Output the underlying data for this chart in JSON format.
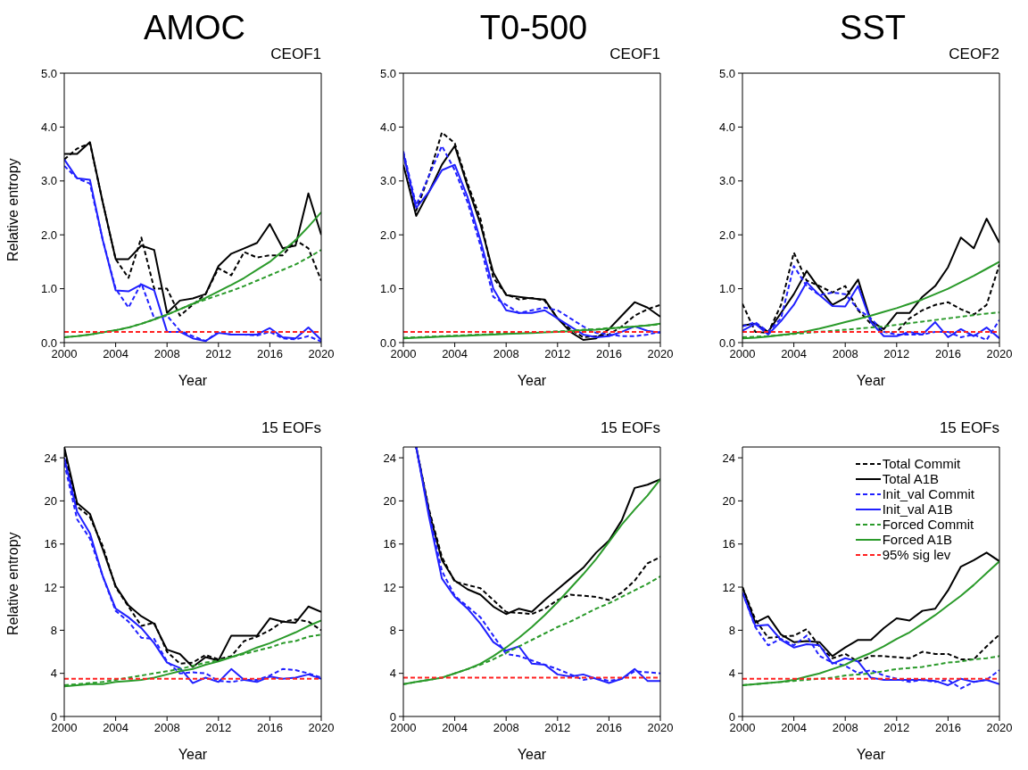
{
  "chart_data": [
    {
      "type": "line",
      "title": "AMOC",
      "subtitle": "CEOF1",
      "xlabel": "Year",
      "ylabel": "Relative entropy",
      "x": [
        2000,
        2001,
        2002,
        2003,
        2004,
        2005,
        2006,
        2007,
        2008,
        2009,
        2010,
        2011,
        2012,
        2013,
        2014,
        2015,
        2016,
        2017,
        2018,
        2019,
        2020
      ],
      "xlim": [
        2000,
        2020
      ],
      "xticks": [
        2000,
        2004,
        2008,
        2012,
        2016,
        2020
      ],
      "ylim": [
        0,
        5
      ],
      "yticks": [
        {
          "value": 0,
          "label": "0.0"
        },
        {
          "value": 1,
          "label": "1.0"
        },
        {
          "value": 2,
          "label": "2.0"
        },
        {
          "value": 3,
          "label": "3.0"
        },
        {
          "value": 4,
          "label": "4.0"
        },
        {
          "value": 5,
          "label": "5.0"
        }
      ],
      "legend": false,
      "series": [
        {
          "color": "#000000",
          "line_style": "dashed",
          "values": [
            3.4,
            3.6,
            3.7,
            2.6,
            1.55,
            1.2,
            1.95,
            1.0,
            1.0,
            0.5,
            0.7,
            0.9,
            1.38,
            1.25,
            1.68,
            1.58,
            1.62,
            1.62,
            1.9,
            1.75,
            1.15
          ]
        },
        {
          "color": "#000000",
          "line_style": "solid",
          "values": [
            3.5,
            3.5,
            3.72,
            2.6,
            1.55,
            1.55,
            1.8,
            1.72,
            0.55,
            0.78,
            0.82,
            0.9,
            1.42,
            1.65,
            1.75,
            1.85,
            2.2,
            1.75,
            1.8,
            2.77,
            2.0
          ]
        },
        {
          "color": "#2020ff",
          "line_style": "dashed",
          "values": [
            3.28,
            3.05,
            2.95,
            1.9,
            1.0,
            0.65,
            1.1,
            0.45,
            0.5,
            0.22,
            0.12,
            0.03,
            0.2,
            0.15,
            0.15,
            0.13,
            0.2,
            0.08,
            0.06,
            0.12,
            0.02
          ]
        },
        {
          "color": "#2020ff",
          "line_style": "solid",
          "values": [
            3.4,
            3.05,
            3.02,
            1.9,
            0.97,
            0.95,
            1.08,
            0.97,
            0.2,
            0.2,
            0.08,
            0.03,
            0.18,
            0.15,
            0.15,
            0.15,
            0.27,
            0.1,
            0.08,
            0.28,
            0.05
          ]
        },
        {
          "color": "#2a9a2a",
          "line_style": "dashed",
          "values": [
            0.1,
            0.12,
            0.15,
            0.19,
            0.23,
            0.28,
            0.35,
            0.43,
            0.52,
            0.62,
            0.72,
            0.8,
            0.88,
            0.96,
            1.05,
            1.15,
            1.25,
            1.35,
            1.45,
            1.58,
            1.72
          ]
        },
        {
          "color": "#2a9a2a",
          "line_style": "solid",
          "values": [
            0.1,
            0.12,
            0.15,
            0.19,
            0.23,
            0.28,
            0.35,
            0.43,
            0.52,
            0.62,
            0.72,
            0.83,
            0.95,
            1.07,
            1.2,
            1.35,
            1.5,
            1.7,
            1.9,
            2.15,
            2.42
          ]
        },
        {
          "color": "#ff2020",
          "line_style": "dashed",
          "values": [
            0.2,
            0.2,
            0.2,
            0.2,
            0.2,
            0.2,
            0.2,
            0.2,
            0.2,
            0.2,
            0.2,
            0.2,
            0.2,
            0.2,
            0.2,
            0.2,
            0.2,
            0.2,
            0.2,
            0.2,
            0.2
          ]
        }
      ]
    },
    {
      "type": "line",
      "title": "T0-500",
      "subtitle": "CEOF1",
      "xlabel": "Year",
      "x": [
        2000,
        2001,
        2002,
        2003,
        2004,
        2005,
        2006,
        2007,
        2008,
        2009,
        2010,
        2011,
        2012,
        2013,
        2014,
        2015,
        2016,
        2017,
        2018,
        2019,
        2020
      ],
      "xlim": [
        2000,
        2020
      ],
      "xticks": [
        2000,
        2004,
        2008,
        2012,
        2016,
        2020
      ],
      "ylim": [
        0,
        5
      ],
      "yticks": [
        {
          "value": 0,
          "label": "0.0"
        },
        {
          "value": 1,
          "label": "1.0"
        },
        {
          "value": 2,
          "label": "2.0"
        },
        {
          "value": 3,
          "label": "3.0"
        },
        {
          "value": 4,
          "label": "4.0"
        },
        {
          "value": 5,
          "label": "5.0"
        }
      ],
      "legend": false,
      "series": [
        {
          "color": "#000000",
          "line_style": "dashed",
          "values": [
            3.5,
            2.45,
            3.1,
            3.9,
            3.7,
            2.95,
            2.3,
            1.2,
            0.9,
            0.8,
            0.83,
            0.78,
            0.45,
            0.25,
            0.1,
            0.12,
            0.15,
            0.3,
            0.5,
            0.62,
            0.7
          ]
        },
        {
          "color": "#000000",
          "line_style": "solid",
          "values": [
            3.3,
            2.35,
            2.8,
            3.3,
            3.65,
            2.9,
            2.2,
            1.3,
            0.88,
            0.85,
            0.82,
            0.8,
            0.45,
            0.2,
            0.05,
            0.08,
            0.25,
            0.5,
            0.75,
            0.65,
            0.48
          ]
        },
        {
          "color": "#2020ff",
          "line_style": "dashed",
          "values": [
            3.55,
            2.55,
            3.1,
            3.65,
            3.2,
            2.6,
            1.8,
            0.85,
            0.7,
            0.55,
            0.6,
            0.65,
            0.6,
            0.45,
            0.3,
            0.18,
            0.15,
            0.12,
            0.12,
            0.15,
            0.2
          ]
        },
        {
          "color": "#2020ff",
          "line_style": "solid",
          "values": [
            3.5,
            2.5,
            2.8,
            3.2,
            3.3,
            2.7,
            1.9,
            1.0,
            0.6,
            0.55,
            0.55,
            0.6,
            0.45,
            0.3,
            0.15,
            0.1,
            0.12,
            0.2,
            0.3,
            0.22,
            0.18
          ]
        },
        {
          "color": "#2a9a2a",
          "line_style": "dashed",
          "values": [
            0.09,
            0.1,
            0.11,
            0.12,
            0.13,
            0.14,
            0.15,
            0.16,
            0.17,
            0.18,
            0.19,
            0.2,
            0.21,
            0.22,
            0.24,
            0.25,
            0.27,
            0.28,
            0.3,
            0.32,
            0.34
          ]
        },
        {
          "color": "#2a9a2a",
          "line_style": "solid",
          "values": [
            0.08,
            0.09,
            0.1,
            0.11,
            0.12,
            0.13,
            0.14,
            0.15,
            0.16,
            0.17,
            0.18,
            0.19,
            0.2,
            0.21,
            0.23,
            0.24,
            0.26,
            0.28,
            0.3,
            0.32,
            0.35
          ]
        },
        {
          "color": "#ff2020",
          "line_style": "dashed",
          "values": [
            0.2,
            0.2,
            0.2,
            0.2,
            0.2,
            0.2,
            0.2,
            0.2,
            0.2,
            0.2,
            0.2,
            0.2,
            0.2,
            0.2,
            0.2,
            0.2,
            0.2,
            0.2,
            0.2,
            0.2,
            0.2
          ]
        }
      ]
    },
    {
      "type": "line",
      "title": "SST",
      "subtitle": "CEOF2",
      "xlabel": "Year",
      "x": [
        2000,
        2001,
        2002,
        2003,
        2004,
        2005,
        2006,
        2007,
        2008,
        2009,
        2010,
        2011,
        2012,
        2013,
        2014,
        2015,
        2016,
        2017,
        2018,
        2019,
        2020
      ],
      "xlim": [
        2000,
        2020
      ],
      "xticks": [
        2000,
        2004,
        2008,
        2012,
        2016,
        2020
      ],
      "ylim": [
        0,
        5
      ],
      "yticks": [
        {
          "value": 0,
          "label": "0.0"
        },
        {
          "value": 1,
          "label": "1.0"
        },
        {
          "value": 2,
          "label": "2.0"
        },
        {
          "value": 3,
          "label": "3.0"
        },
        {
          "value": 4,
          "label": "4.0"
        },
        {
          "value": 5,
          "label": "5.0"
        }
      ],
      "legend": false,
      "series": [
        {
          "color": "#000000",
          "line_style": "dashed",
          "values": [
            0.72,
            0.2,
            0.18,
            0.7,
            1.67,
            1.15,
            1.05,
            0.93,
            1.05,
            0.6,
            0.35,
            0.2,
            0.2,
            0.45,
            0.6,
            0.7,
            0.75,
            0.62,
            0.52,
            0.7,
            1.45
          ]
        },
        {
          "color": "#000000",
          "line_style": "solid",
          "values": [
            0.32,
            0.35,
            0.2,
            0.55,
            0.9,
            1.33,
            1.0,
            0.7,
            0.83,
            1.17,
            0.4,
            0.25,
            0.55,
            0.55,
            0.85,
            1.05,
            1.4,
            1.95,
            1.75,
            2.3,
            1.85
          ]
        },
        {
          "color": "#2020ff",
          "line_style": "dashed",
          "values": [
            0.3,
            0.38,
            0.2,
            0.45,
            1.42,
            1.05,
            0.88,
            0.93,
            0.9,
            0.62,
            0.45,
            0.2,
            0.15,
            0.15,
            0.15,
            0.2,
            0.2,
            0.1,
            0.15,
            0.05,
            0.42
          ]
        },
        {
          "color": "#2020ff",
          "line_style": "solid",
          "values": [
            0.22,
            0.35,
            0.15,
            0.4,
            0.7,
            1.12,
            0.88,
            0.68,
            0.67,
            1.05,
            0.38,
            0.12,
            0.12,
            0.2,
            0.15,
            0.38,
            0.1,
            0.25,
            0.12,
            0.28,
            0.08
          ]
        },
        {
          "color": "#2a9a2a",
          "line_style": "dashed",
          "values": [
            0.1,
            0.11,
            0.12,
            0.14,
            0.16,
            0.18,
            0.2,
            0.22,
            0.24,
            0.26,
            0.28,
            0.3,
            0.33,
            0.36,
            0.39,
            0.42,
            0.45,
            0.48,
            0.51,
            0.54,
            0.56
          ]
        },
        {
          "color": "#2a9a2a",
          "line_style": "solid",
          "values": [
            0.08,
            0.09,
            0.11,
            0.14,
            0.17,
            0.21,
            0.26,
            0.32,
            0.38,
            0.44,
            0.5,
            0.57,
            0.64,
            0.72,
            0.8,
            0.9,
            1.0,
            1.12,
            1.24,
            1.37,
            1.5
          ]
        },
        {
          "color": "#ff2020",
          "line_style": "dashed",
          "values": [
            0.2,
            0.2,
            0.2,
            0.2,
            0.2,
            0.2,
            0.2,
            0.2,
            0.2,
            0.2,
            0.2,
            0.2,
            0.2,
            0.2,
            0.2,
            0.2,
            0.2,
            0.2,
            0.2,
            0.2,
            0.2
          ]
        }
      ]
    },
    {
      "type": "line",
      "subtitle": "15 EOFs",
      "xlabel": "Year",
      "ylabel": "Relative entropy",
      "x": [
        2000,
        2001,
        2002,
        2003,
        2004,
        2005,
        2006,
        2007,
        2008,
        2009,
        2010,
        2011,
        2012,
        2013,
        2014,
        2015,
        2016,
        2017,
        2018,
        2019,
        2020
      ],
      "xlim": [
        2000,
        2020
      ],
      "xticks": [
        2000,
        2004,
        2008,
        2012,
        2016,
        2020
      ],
      "ylim": [
        0,
        25
      ],
      "yticks": [
        0,
        4,
        8,
        12,
        16,
        20,
        24
      ],
      "legend": false,
      "series": [
        {
          "color": "#000000",
          "line_style": "dashed",
          "values": [
            24.5,
            19.5,
            18.5,
            15.8,
            12.0,
            10.2,
            8.4,
            8.7,
            6.0,
            4.9,
            5.0,
            5.7,
            5.3,
            5.6,
            7.0,
            7.4,
            8.0,
            8.8,
            9.0,
            8.8,
            8.0
          ]
        },
        {
          "color": "#000000",
          "line_style": "solid",
          "values": [
            25,
            19.8,
            18.8,
            15.5,
            12.1,
            10.3,
            9.3,
            8.6,
            6.2,
            5.8,
            4.6,
            5.5,
            5.2,
            7.5,
            7.5,
            7.5,
            9.1,
            8.8,
            8.7,
            10.2,
            9.7
          ]
        },
        {
          "color": "#2020ff",
          "line_style": "dashed",
          "values": [
            23.5,
            18.3,
            16.5,
            13.0,
            9.8,
            8.8,
            7.3,
            7.2,
            5.1,
            4.0,
            4.1,
            4.0,
            3.3,
            3.2,
            3.4,
            3.4,
            3.8,
            4.4,
            4.3,
            4.0,
            3.6
          ]
        },
        {
          "color": "#2020ff",
          "line_style": "solid",
          "values": [
            24,
            19.0,
            17.0,
            13.0,
            10.0,
            9.2,
            8.2,
            6.8,
            5.0,
            4.5,
            3.1,
            3.6,
            3.2,
            4.4,
            3.4,
            3.2,
            3.7,
            3.5,
            3.6,
            3.9,
            3.5
          ]
        },
        {
          "color": "#2a9a2a",
          "line_style": "dashed",
          "values": [
            2.9,
            3.0,
            3.1,
            3.2,
            3.4,
            3.6,
            3.8,
            4.0,
            4.2,
            4.4,
            4.7,
            5.0,
            5.2,
            5.5,
            5.8,
            6.1,
            6.4,
            6.8,
            7.0,
            7.4,
            7.6
          ]
        },
        {
          "color": "#2a9a2a",
          "line_style": "solid",
          "values": [
            2.8,
            2.9,
            3.0,
            3.0,
            3.2,
            3.3,
            3.4,
            3.6,
            3.9,
            4.2,
            4.4,
            4.8,
            5.1,
            5.5,
            5.9,
            6.4,
            6.8,
            7.3,
            7.8,
            8.4,
            8.9
          ]
        },
        {
          "color": "#ff2020",
          "line_style": "dashed",
          "values": [
            3.5,
            3.5,
            3.5,
            3.5,
            3.5,
            3.5,
            3.5,
            3.5,
            3.5,
            3.5,
            3.5,
            3.5,
            3.5,
            3.5,
            3.5,
            3.5,
            3.5,
            3.5,
            3.5,
            3.5,
            3.5
          ]
        }
      ]
    },
    {
      "type": "line",
      "subtitle": "15 EOFs",
      "xlabel": "Year",
      "x": [
        2000,
        2001,
        2002,
        2003,
        2004,
        2005,
        2006,
        2007,
        2008,
        2009,
        2010,
        2011,
        2012,
        2013,
        2014,
        2015,
        2016,
        2017,
        2018,
        2019,
        2020
      ],
      "xlim": [
        2000,
        2020
      ],
      "xticks": [
        2000,
        2004,
        2008,
        2012,
        2016,
        2020
      ],
      "ylim": [
        0,
        25
      ],
      "yticks": [
        0,
        4,
        8,
        12,
        16,
        20,
        24
      ],
      "legend": false,
      "series": [
        {
          "color": "#000000",
          "line_style": "dashed",
          "values": [
            null,
            25,
            19.2,
            14.8,
            12.5,
            12.2,
            11.9,
            10.8,
            9.7,
            9.6,
            9.5,
            10.0,
            10.8,
            11.3,
            11.2,
            11.1,
            10.8,
            11.5,
            12.6,
            14.2,
            14.8
          ]
        },
        {
          "color": "#000000",
          "line_style": "solid",
          "values": [
            null,
            25,
            19.0,
            14.5,
            12.6,
            11.8,
            11.3,
            10.2,
            9.5,
            10.0,
            9.7,
            10.8,
            11.8,
            12.8,
            13.8,
            15.2,
            16.3,
            18.2,
            21.2,
            21.5,
            22.0
          ]
        },
        {
          "color": "#2020ff",
          "line_style": "dashed",
          "values": [
            null,
            25,
            18.8,
            13.5,
            11.2,
            10.2,
            9.2,
            7.5,
            5.8,
            5.6,
            5.2,
            4.8,
            4.4,
            3.9,
            3.4,
            3.6,
            3.3,
            3.5,
            4.2,
            4.1,
            4.0
          ]
        },
        {
          "color": "#2020ff",
          "line_style": "solid",
          "values": [
            null,
            25,
            18.5,
            12.8,
            11.1,
            10.0,
            8.6,
            6.9,
            6.1,
            6.5,
            4.9,
            4.8,
            3.9,
            3.7,
            3.9,
            3.5,
            3.1,
            3.5,
            4.4,
            3.3,
            3.3
          ]
        },
        {
          "color": "#2a9a2a",
          "line_style": "dashed",
          "values": [
            3.0,
            3.2,
            3.4,
            3.6,
            4.0,
            4.4,
            4.8,
            5.3,
            5.9,
            6.5,
            7.1,
            7.7,
            8.3,
            8.8,
            9.4,
            10.0,
            10.5,
            11.1,
            11.7,
            12.3,
            13.0
          ]
        },
        {
          "color": "#2a9a2a",
          "line_style": "solid",
          "values": [
            3.0,
            3.2,
            3.4,
            3.6,
            4.0,
            4.4,
            4.9,
            5.6,
            6.4,
            7.3,
            8.3,
            9.4,
            10.6,
            11.9,
            13.2,
            14.6,
            16.2,
            17.8,
            19.2,
            20.5,
            22.0
          ]
        },
        {
          "color": "#ff2020",
          "line_style": "dashed",
          "values": [
            3.6,
            3.6,
            3.6,
            3.6,
            3.6,
            3.6,
            3.6,
            3.6,
            3.6,
            3.6,
            3.6,
            3.6,
            3.6,
            3.6,
            3.6,
            3.6,
            3.6,
            3.6,
            3.6,
            3.6,
            3.6
          ]
        }
      ]
    },
    {
      "type": "line",
      "subtitle": "15 EOFs",
      "xlabel": "Year",
      "x": [
        2000,
        2001,
        2002,
        2003,
        2004,
        2005,
        2006,
        2007,
        2008,
        2009,
        2010,
        2011,
        2012,
        2013,
        2014,
        2015,
        2016,
        2017,
        2018,
        2019,
        2020
      ],
      "xlim": [
        2000,
        2020
      ],
      "xticks": [
        2000,
        2004,
        2008,
        2012,
        2016,
        2020
      ],
      "ylim": [
        0,
        25
      ],
      "yticks": [
        0,
        4,
        8,
        12,
        16,
        20,
        24
      ],
      "legend": "top right",
      "series": [
        {
          "name": "Total Commit",
          "color": "#000000",
          "line_style": "dashed",
          "values": [
            12,
            9.0,
            7.3,
            7.4,
            7.5,
            8.1,
            6.5,
            5.4,
            5.8,
            5.1,
            5.6,
            5.6,
            5.5,
            5.4,
            6.0,
            5.8,
            5.8,
            5.3,
            5.3,
            6.5,
            7.6
          ]
        },
        {
          "name": "Total A1B",
          "color": "#000000",
          "line_style": "solid",
          "values": [
            12,
            8.7,
            9.3,
            7.6,
            6.9,
            7.0,
            6.9,
            5.6,
            6.4,
            7.1,
            7.1,
            8.2,
            9.1,
            8.9,
            9.8,
            10.0,
            11.7,
            13.9,
            14.5,
            15.2,
            14.4
          ]
        },
        {
          "name": "Init_val Commit",
          "color": "#2020ff",
          "line_style": "dashed",
          "values": [
            11.5,
            8.3,
            6.6,
            7.2,
            6.6,
            7.5,
            5.6,
            5.0,
            4.7,
            4.0,
            4.3,
            3.8,
            3.5,
            3.2,
            3.4,
            3.2,
            3.4,
            2.6,
            3.2,
            3.4,
            4.3
          ]
        },
        {
          "name": "Init_val A1B",
          "color": "#2020ff",
          "line_style": "solid",
          "values": [
            11.5,
            8.4,
            8.5,
            7.1,
            6.4,
            6.7,
            6.6,
            4.9,
            5.4,
            5.1,
            3.6,
            3.4,
            3.4,
            3.4,
            3.4,
            3.3,
            2.9,
            3.5,
            3.2,
            3.4,
            3.0
          ]
        },
        {
          "name": "Forced Commit",
          "color": "#2a9a2a",
          "line_style": "dashed",
          "values": [
            2.9,
            3.0,
            3.1,
            3.2,
            3.3,
            3.4,
            3.5,
            3.6,
            3.8,
            3.9,
            4.0,
            4.2,
            4.4,
            4.5,
            4.6,
            4.8,
            5.0,
            5.1,
            5.3,
            5.4,
            5.6
          ]
        },
        {
          "name": "Forced A1B",
          "color": "#2a9a2a",
          "line_style": "solid",
          "values": [
            2.9,
            3.0,
            3.1,
            3.2,
            3.4,
            3.7,
            4.0,
            4.4,
            4.8,
            5.4,
            5.9,
            6.5,
            7.2,
            7.8,
            8.6,
            9.4,
            10.3,
            11.2,
            12.2,
            13.3,
            14.4
          ]
        },
        {
          "name": "95% sig lev",
          "color": "#ff2020",
          "line_style": "dashed",
          "values": [
            3.5,
            3.5,
            3.5,
            3.5,
            3.5,
            3.5,
            3.5,
            3.5,
            3.5,
            3.5,
            3.5,
            3.5,
            3.5,
            3.5,
            3.5,
            3.5,
            3.5,
            3.5,
            3.5,
            3.5,
            3.5
          ]
        }
      ]
    }
  ]
}
